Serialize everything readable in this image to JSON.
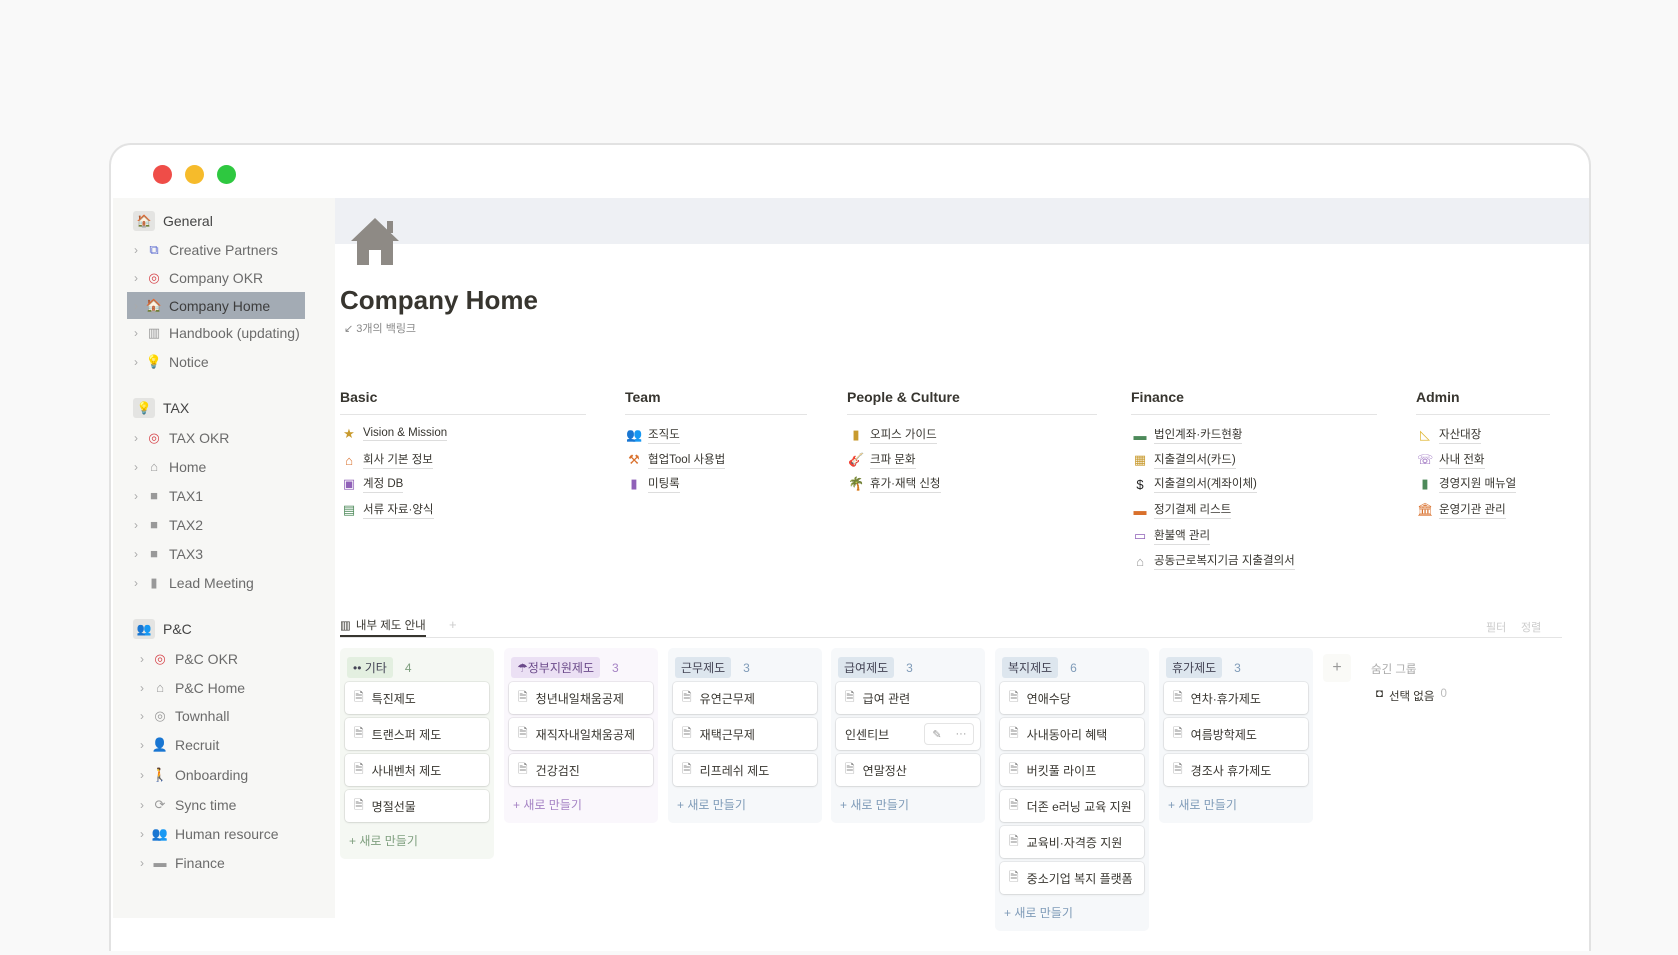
{
  "window": {
    "controls": [
      "#ef4d48",
      "#f6bb2b",
      "#2ec840"
    ]
  },
  "sidebar": [
    {
      "label": "General",
      "section": true,
      "icon": "🏠"
    },
    {
      "label": "Creative Partners",
      "icon": "⧉",
      "color": "#5a6ad0"
    },
    {
      "label": "Company OKR",
      "icon": "◎",
      "color": "#d6454b"
    },
    {
      "label": "Company Home",
      "icon": "🏠",
      "selected": true
    },
    {
      "label": "Handbook (updating)",
      "icon": "▥",
      "color": "#999"
    },
    {
      "label": "Notice",
      "icon": "💡",
      "color": "#999"
    },
    {
      "label": "TAX",
      "section": true,
      "icon": "💡"
    },
    {
      "label": "TAX OKR",
      "icon": "◎",
      "color": "#d6454b"
    },
    {
      "label": "Home",
      "icon": "⌂",
      "color": "#999"
    },
    {
      "label": "TAX1",
      "icon": "■",
      "color": "#999"
    },
    {
      "label": "TAX2",
      "icon": "■",
      "color": "#999"
    },
    {
      "label": "TAX3",
      "icon": "■",
      "color": "#999"
    },
    {
      "label": "Lead Meeting",
      "icon": "▮",
      "color": "#999"
    },
    {
      "label": "P&C",
      "section": true,
      "icon": "👥"
    },
    {
      "label": "P&C OKR",
      "icon": "◎",
      "color": "#d6454b"
    },
    {
      "label": "P&C Home",
      "icon": "⌂",
      "color": "#999"
    },
    {
      "label": "Townhall",
      "icon": "◎",
      "color": "#999"
    },
    {
      "label": "Recruit",
      "icon": "👤",
      "color": "#999"
    },
    {
      "label": "Onboarding",
      "icon": "🚶",
      "color": "#999"
    },
    {
      "label": "Sync time",
      "icon": "⟳",
      "color": "#999"
    },
    {
      "label": "Human resource",
      "icon": "👥",
      "color": "#999"
    },
    {
      "label": "Finance",
      "icon": "▬",
      "color": "#999"
    }
  ],
  "page": {
    "icon": "house-icon",
    "title": "Company Home",
    "backlinks": "3개의 백링크"
  },
  "sections": [
    {
      "title": "Basic",
      "items": [
        {
          "icon": "★",
          "color": "#c89a2e",
          "label": "Vision & Mission"
        },
        {
          "icon": "⌂",
          "color": "#d9702c",
          "label": "회사 기본 정보"
        },
        {
          "icon": "▣",
          "color": "#9061b8",
          "label": "계정 DB"
        },
        {
          "icon": "▤",
          "color": "#4d8a5a",
          "label": "서류 자료·양식"
        }
      ]
    },
    {
      "title": "Team",
      "items": [
        {
          "icon": "👥",
          "color": "#d49a35",
          "label": "조직도"
        },
        {
          "icon": "⚒",
          "color": "#d9702c",
          "label": "협업Tool 사용법"
        },
        {
          "icon": "▮",
          "color": "#9061b8",
          "label": "미팅록"
        }
      ]
    },
    {
      "title": "People & Culture",
      "items": [
        {
          "icon": "▮",
          "color": "#c89a2e",
          "label": "오피스 가이드"
        },
        {
          "icon": "🎸",
          "color": "#d9702c",
          "label": "크파 문화"
        },
        {
          "icon": "🌴",
          "color": "#4d8a5a",
          "label": "휴가·재택 신청"
        }
      ]
    },
    {
      "title": "Finance",
      "items": [
        {
          "icon": "▬",
          "color": "#4d8a5a",
          "label": "법인계좌·카드현황"
        },
        {
          "icon": "▦",
          "color": "#c89a2e",
          "label": "지출결의서(카드)"
        },
        {
          "icon": "$",
          "color": "#222",
          "label": "지출결의서(계좌이체)"
        },
        {
          "icon": "▬",
          "color": "#d9702c",
          "label": "정기결제 리스트"
        },
        {
          "icon": "▭",
          "color": "#9061b8",
          "label": "환불액 관리"
        },
        {
          "icon": "⌂",
          "color": "#999",
          "label": "공동근로복지기금 지출결의서"
        }
      ]
    },
    {
      "title": "Admin",
      "items": [
        {
          "icon": "◺",
          "color": "#e0b93a",
          "label": "자산대장"
        },
        {
          "icon": "☏",
          "color": "#9061b8",
          "label": "사내 전화"
        },
        {
          "icon": "▮",
          "color": "#4d8a5a",
          "label": "경영지원 매뉴얼"
        },
        {
          "icon": "🏛",
          "color": "#d9702c",
          "label": "운영기관 관리"
        }
      ]
    }
  ],
  "board": {
    "view_tab": "내부 제도 안내",
    "filter": "필터",
    "sort": "정렬",
    "new_label": "+ 새로 만들기",
    "hidden_title": "숨긴 그룹",
    "hidden_item": "선택 없음",
    "hidden_count": "0",
    "columns": [
      {
        "name": "•• 기타",
        "count": "4",
        "tag": "#e3efe0",
        "bg": "#f5f8f3",
        "accent": "#7f9f7f",
        "cards": [
          "특진제도",
          "트랜스퍼 제도",
          "사내벤처 제도",
          "명절선물"
        ]
      },
      {
        "name": "☂정부지원제도",
        "count": "3",
        "tag": "#ebe0f4",
        "bg": "#faf7fc",
        "accent": "#a583c4",
        "cards": [
          "청년내일채움공제",
          "재직자내일채움공제",
          "건강검진"
        ]
      },
      {
        "name": "근무제도",
        "count": "3",
        "tag": "#dde6ee",
        "bg": "#f6f8fa",
        "accent": "#7f9bb8",
        "cards": [
          "유연근무제",
          "재택근무제",
          "리프레쉬 제도"
        ]
      },
      {
        "name": "급여제도",
        "count": "3",
        "tag": "#dde6ee",
        "bg": "#f6f8fa",
        "accent": "#7f9bb8",
        "cards": [
          "급여 관련",
          "인센티브",
          "연말정산"
        ],
        "hovered": 1
      },
      {
        "name": "복지제도",
        "count": "6",
        "tag": "#dde6ee",
        "bg": "#f6f8fa",
        "accent": "#7f9bb8",
        "cards": [
          "연애수당",
          "사내동아리 혜택",
          "버킷풀 라이프",
          "더존 e러닝 교육 지원",
          "교육비·자격증 지원",
          "중소기업 복지 플랫폼"
        ]
      },
      {
        "name": "휴가제도",
        "count": "3",
        "tag": "#dde6ee",
        "bg": "#f6f8fa",
        "accent": "#7f9bb8",
        "cards": [
          "연차·휴가제도",
          "여름방학제도",
          "경조사 휴가제도"
        ]
      }
    ]
  }
}
